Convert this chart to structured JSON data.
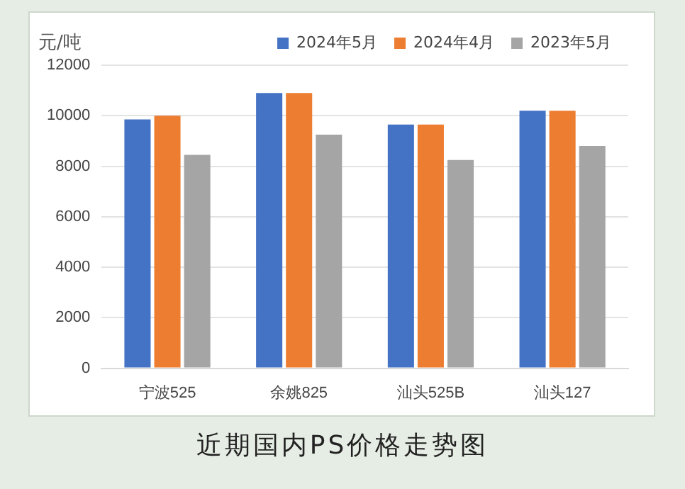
{
  "chart_data": {
    "type": "bar",
    "title": "近期国内PS价格走势图",
    "ylabel": "元/吨",
    "categories": [
      "宁波525",
      "余姚825",
      "汕头525B",
      "汕头127"
    ],
    "series": [
      {
        "name": "2024年5月",
        "color": "#4472c4",
        "values": [
          9850,
          10900,
          9650,
          10200
        ]
      },
      {
        "name": "2024年4月",
        "color": "#ed7d31",
        "values": [
          10000,
          10900,
          9650,
          10200
        ]
      },
      {
        "name": "2023年5月",
        "color": "#a5a5a5",
        "values": [
          8450,
          9250,
          8250,
          8800
        ]
      }
    ],
    "ylim": [
      0,
      12000
    ],
    "yticks": [
      0,
      2000,
      4000,
      6000,
      8000,
      10000,
      12000
    ],
    "grid": "y",
    "legend": "top right"
  }
}
